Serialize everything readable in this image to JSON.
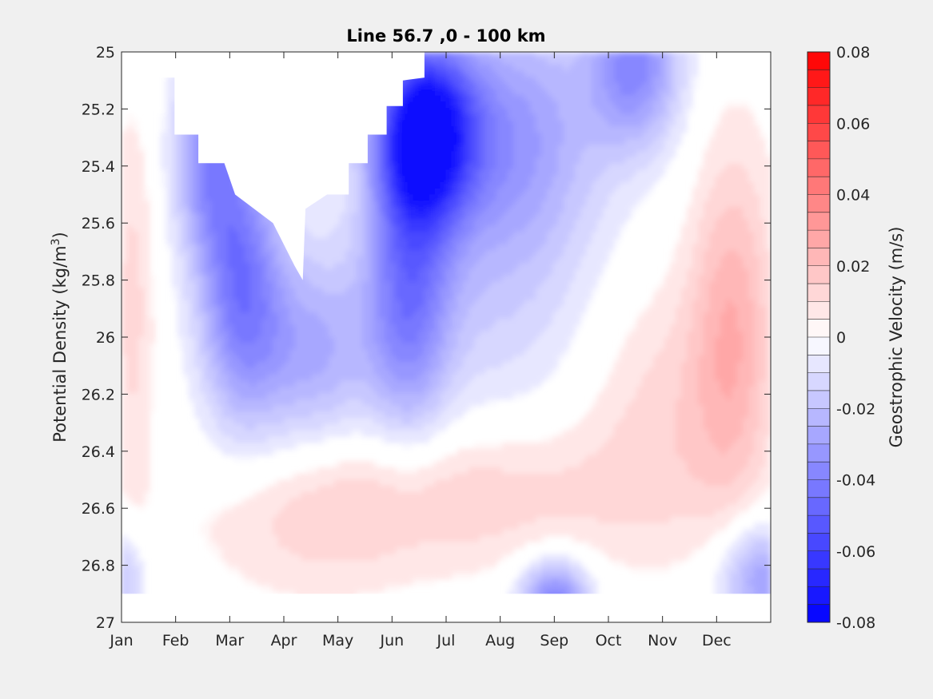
{
  "chart_data": {
    "type": "heatmap",
    "title": "Line 56.7 ,0 - 100 km",
    "ylabel": "Potential Density (kg/m",
    "ylabel_sup": "3",
    "ylabel_end": ")",
    "xlabel": "",
    "x_tick_labels": [
      "Jan",
      "Feb",
      "Mar",
      "Apr",
      "May",
      "Jun",
      "Jul",
      "Aug",
      "Sep",
      "Oct",
      "Nov",
      "Dec"
    ],
    "y_tick_labels": [
      "25",
      "25.2",
      "25.4",
      "25.6",
      "25.8",
      "26",
      "26.2",
      "26.4",
      "26.6",
      "26.8",
      "27"
    ],
    "ylim": [
      25,
      27
    ],
    "y_reversed": true,
    "xlim": [
      1,
      13
    ],
    "colorbar": {
      "label": "Geostrophic Velocity (m/s)",
      "tick_labels": [
        "0.08",
        "0.06",
        "0.04",
        "0.02",
        "0",
        "-0.02",
        "-0.04",
        "-0.06",
        "-0.08"
      ],
      "range": [
        -0.08,
        0.08
      ],
      "levels": 32,
      "color_negative": "#0000ff",
      "color_zero": "#ffffff",
      "color_positive": "#ff0000"
    },
    "grid": false,
    "mask_color": "#ffffff"
  }
}
